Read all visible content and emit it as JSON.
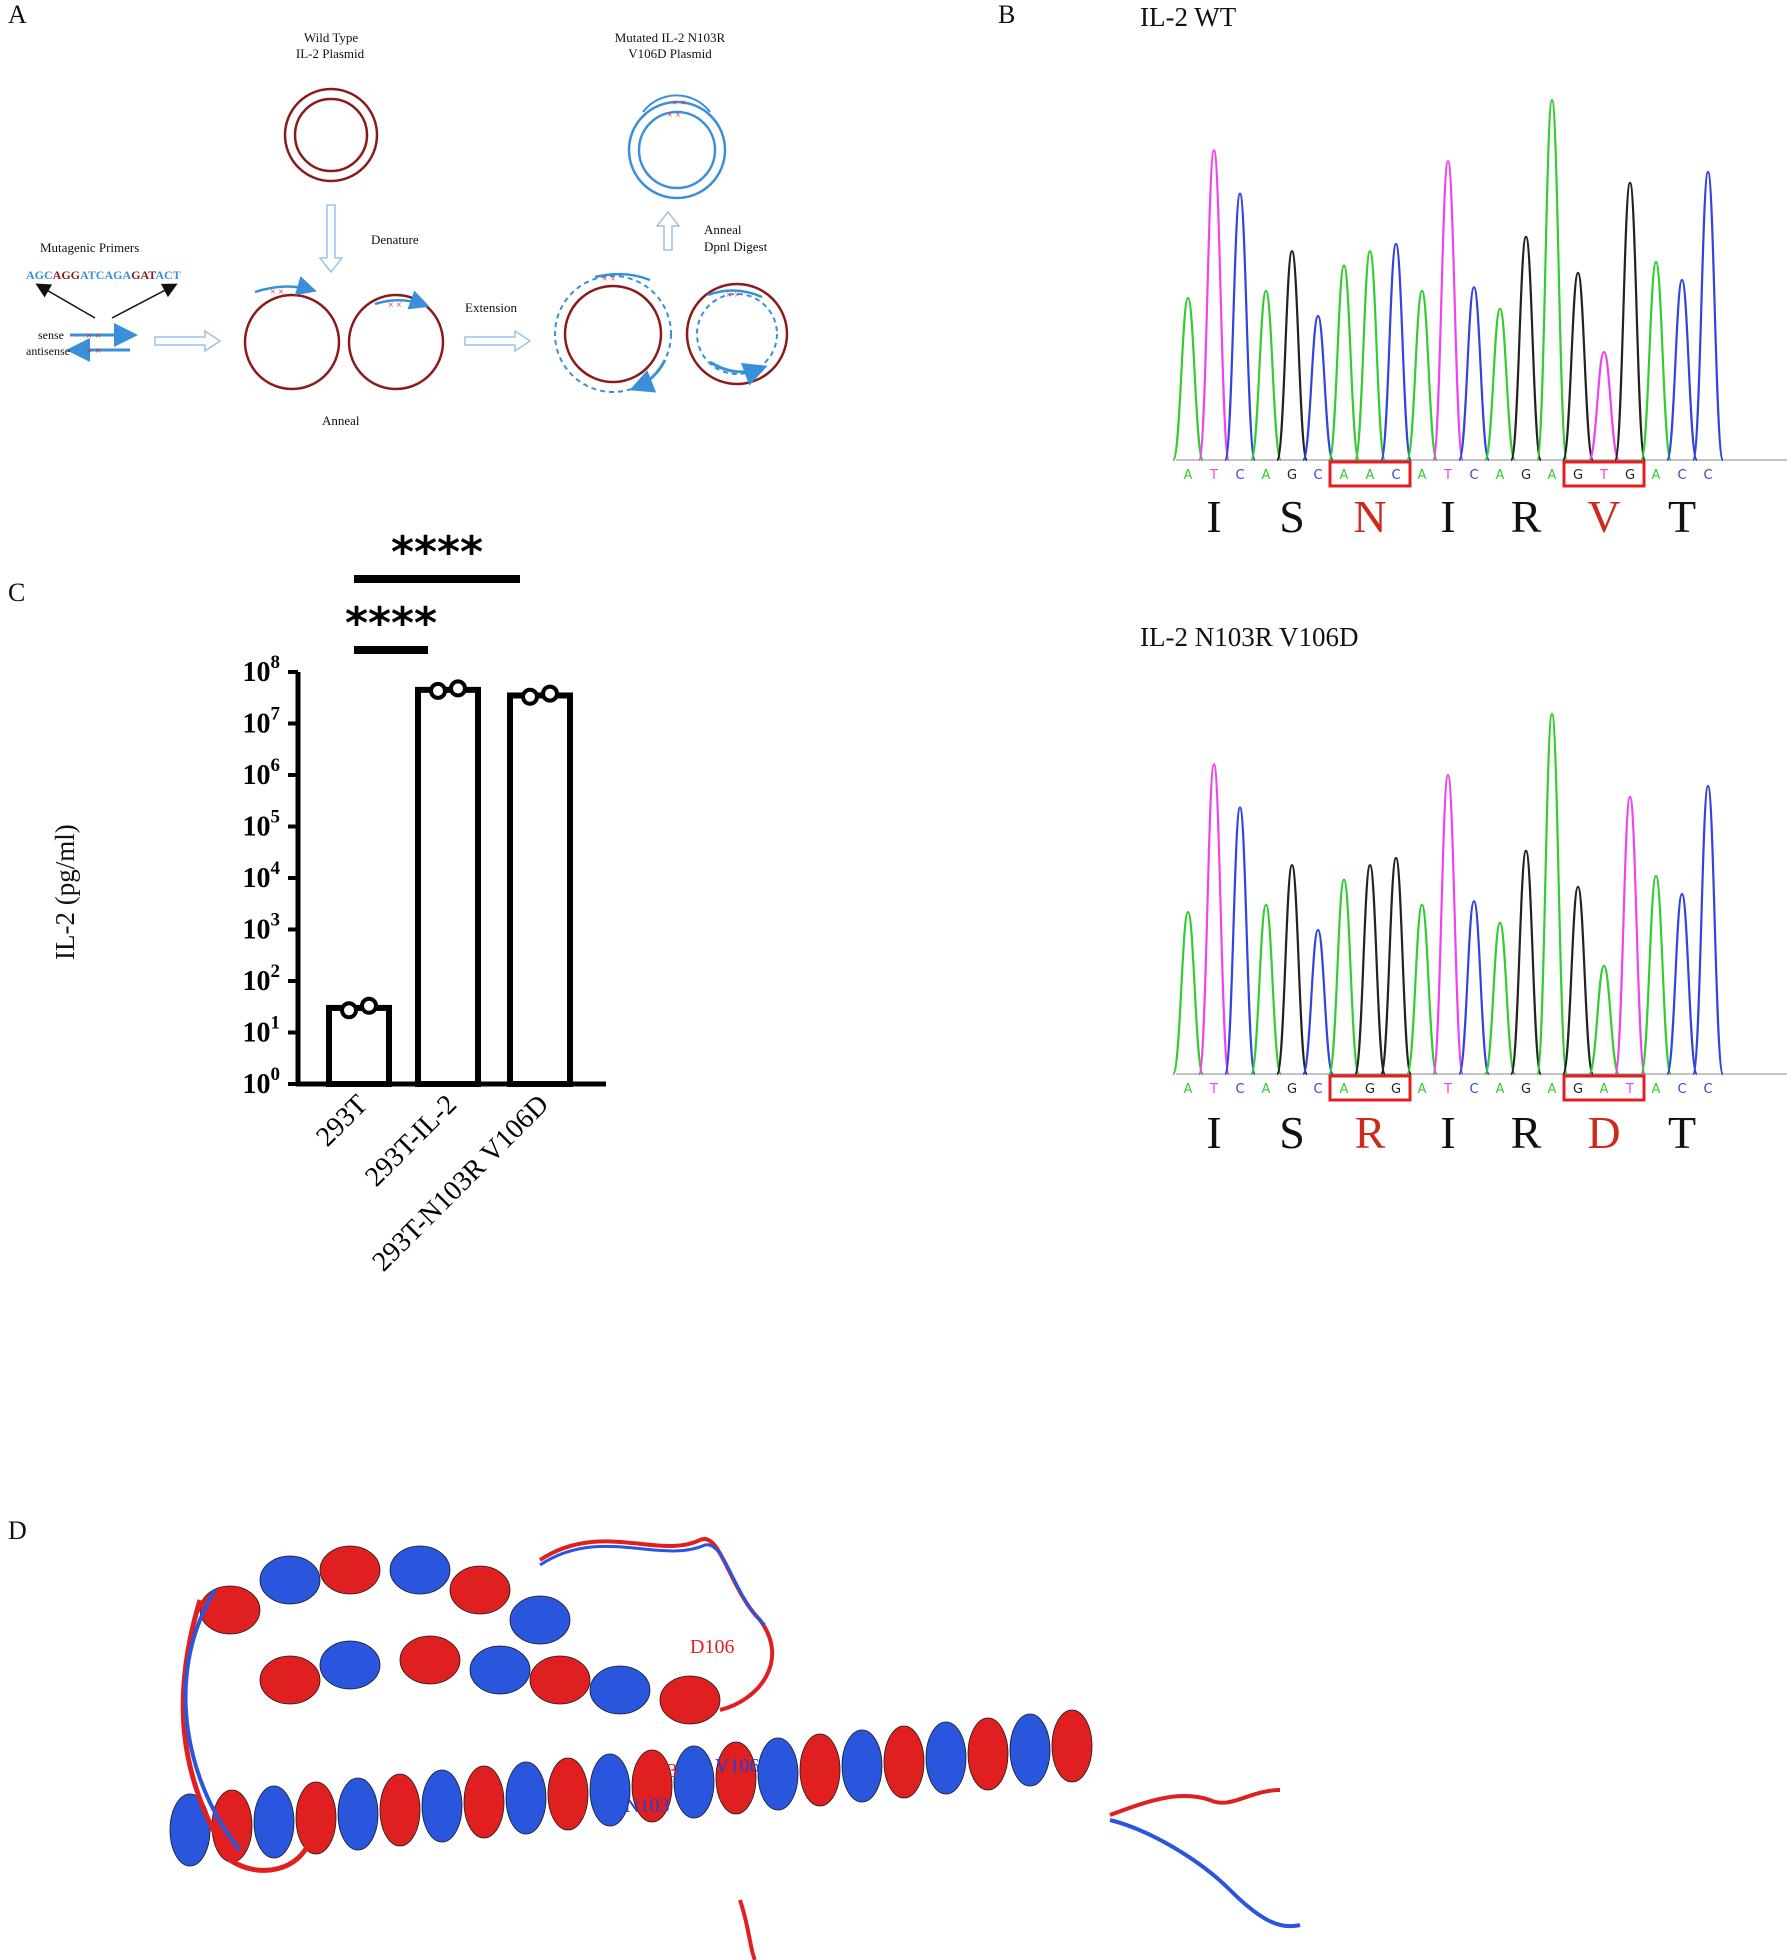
{
  "panel_labels": {
    "a": "A",
    "b": "B",
    "c": "C",
    "d": "D"
  },
  "panel_a": {
    "wild_type_line1": "Wild Type",
    "wild_type_line2": "IL-2 Plasmid",
    "mutated_line1": "Mutated  IL-2 N103R",
    "mutated_line2": "V106D Plasmid",
    "mutagenic_primers": "Mutagenic Primers",
    "primer_sequence_parts": [
      {
        "text": "AGC",
        "color": "#3a8fd8"
      },
      {
        "text": "AGG",
        "color": "#8b1a1a"
      },
      {
        "text": "ATCAGA",
        "color": "#3a8fd8"
      },
      {
        "text": "GAT",
        "color": "#8b1a1a"
      },
      {
        "text": "ACT",
        "color": "#3a8fd8"
      }
    ],
    "sense": "sense",
    "antisense": "antisense",
    "denature": "Denature",
    "extension": "Extension",
    "anneal": "Anneal",
    "anneal_right_line1": "Anneal",
    "anneal_right_line2": "Dpnl Digest"
  },
  "panel_b": {
    "wt_title": "IL-2 WT",
    "mut_title": "IL-2 N103R V106D",
    "wt_bases": [
      "A",
      "T",
      "C",
      "A",
      "G",
      "C",
      "A",
      "A",
      "C",
      "A",
      "T",
      "C",
      "A",
      "G",
      "A",
      "G",
      "T",
      "G",
      "A",
      "C",
      "C"
    ],
    "mut_bases": [
      "A",
      "T",
      "C",
      "A",
      "G",
      "C",
      "A",
      "G",
      "G",
      "A",
      "T",
      "C",
      "A",
      "G",
      "A",
      "G",
      "A",
      "T",
      "A",
      "C",
      "C"
    ],
    "wt_aminoacids": [
      {
        "aa": "I",
        "mutated": false
      },
      {
        "aa": "S",
        "mutated": false
      },
      {
        "aa": "N",
        "mutated": true
      },
      {
        "aa": "I",
        "mutated": false
      },
      {
        "aa": "R",
        "mutated": false
      },
      {
        "aa": "V",
        "mutated": true
      },
      {
        "aa": "T",
        "mutated": false
      }
    ],
    "mut_aminoacids": [
      {
        "aa": "I",
        "mutated": false
      },
      {
        "aa": "S",
        "mutated": false
      },
      {
        "aa": "R",
        "mutated": true
      },
      {
        "aa": "I",
        "mutated": false
      },
      {
        "aa": "R",
        "mutated": false
      },
      {
        "aa": "D",
        "mutated": true
      },
      {
        "aa": "T",
        "mutated": false
      }
    ],
    "base_colors": {
      "A": "#33cc33",
      "T": "#ee44ee",
      "C": "#3344dd",
      "G": "#222222"
    },
    "box_color": "#e02020"
  },
  "chart_data": {
    "type": "bar",
    "categories": [
      "293T",
      "293T-IL-2",
      "293T-N103R V106D"
    ],
    "values": [
      30,
      45000000,
      35000000
    ],
    "points": [
      [
        27,
        33
      ],
      [
        43000000,
        48000000
      ],
      [
        33000000,
        38000000
      ]
    ],
    "ylabel": "IL-2 (pg/ml)",
    "yscale": "log",
    "ylim": [
      1,
      100000000
    ],
    "ytick_exponents": [
      0,
      1,
      2,
      3,
      4,
      5,
      6,
      7,
      8
    ],
    "significance": [
      {
        "from": "293T",
        "to": "293T-IL-2",
        "label": "****"
      },
      {
        "from": "293T",
        "to": "293T-N103R V106D",
        "label": "****"
      }
    ]
  },
  "panel_d": {
    "labels": [
      {
        "text": "D106",
        "color": "#e02020"
      },
      {
        "text": "R103",
        "color": "#e02020"
      },
      {
        "text": "V106",
        "color": "#2040d0"
      },
      {
        "text": "N103",
        "color": "#2040d0"
      }
    ],
    "mutant_color": "#e02020",
    "wildtype_color": "#2a55dd"
  }
}
